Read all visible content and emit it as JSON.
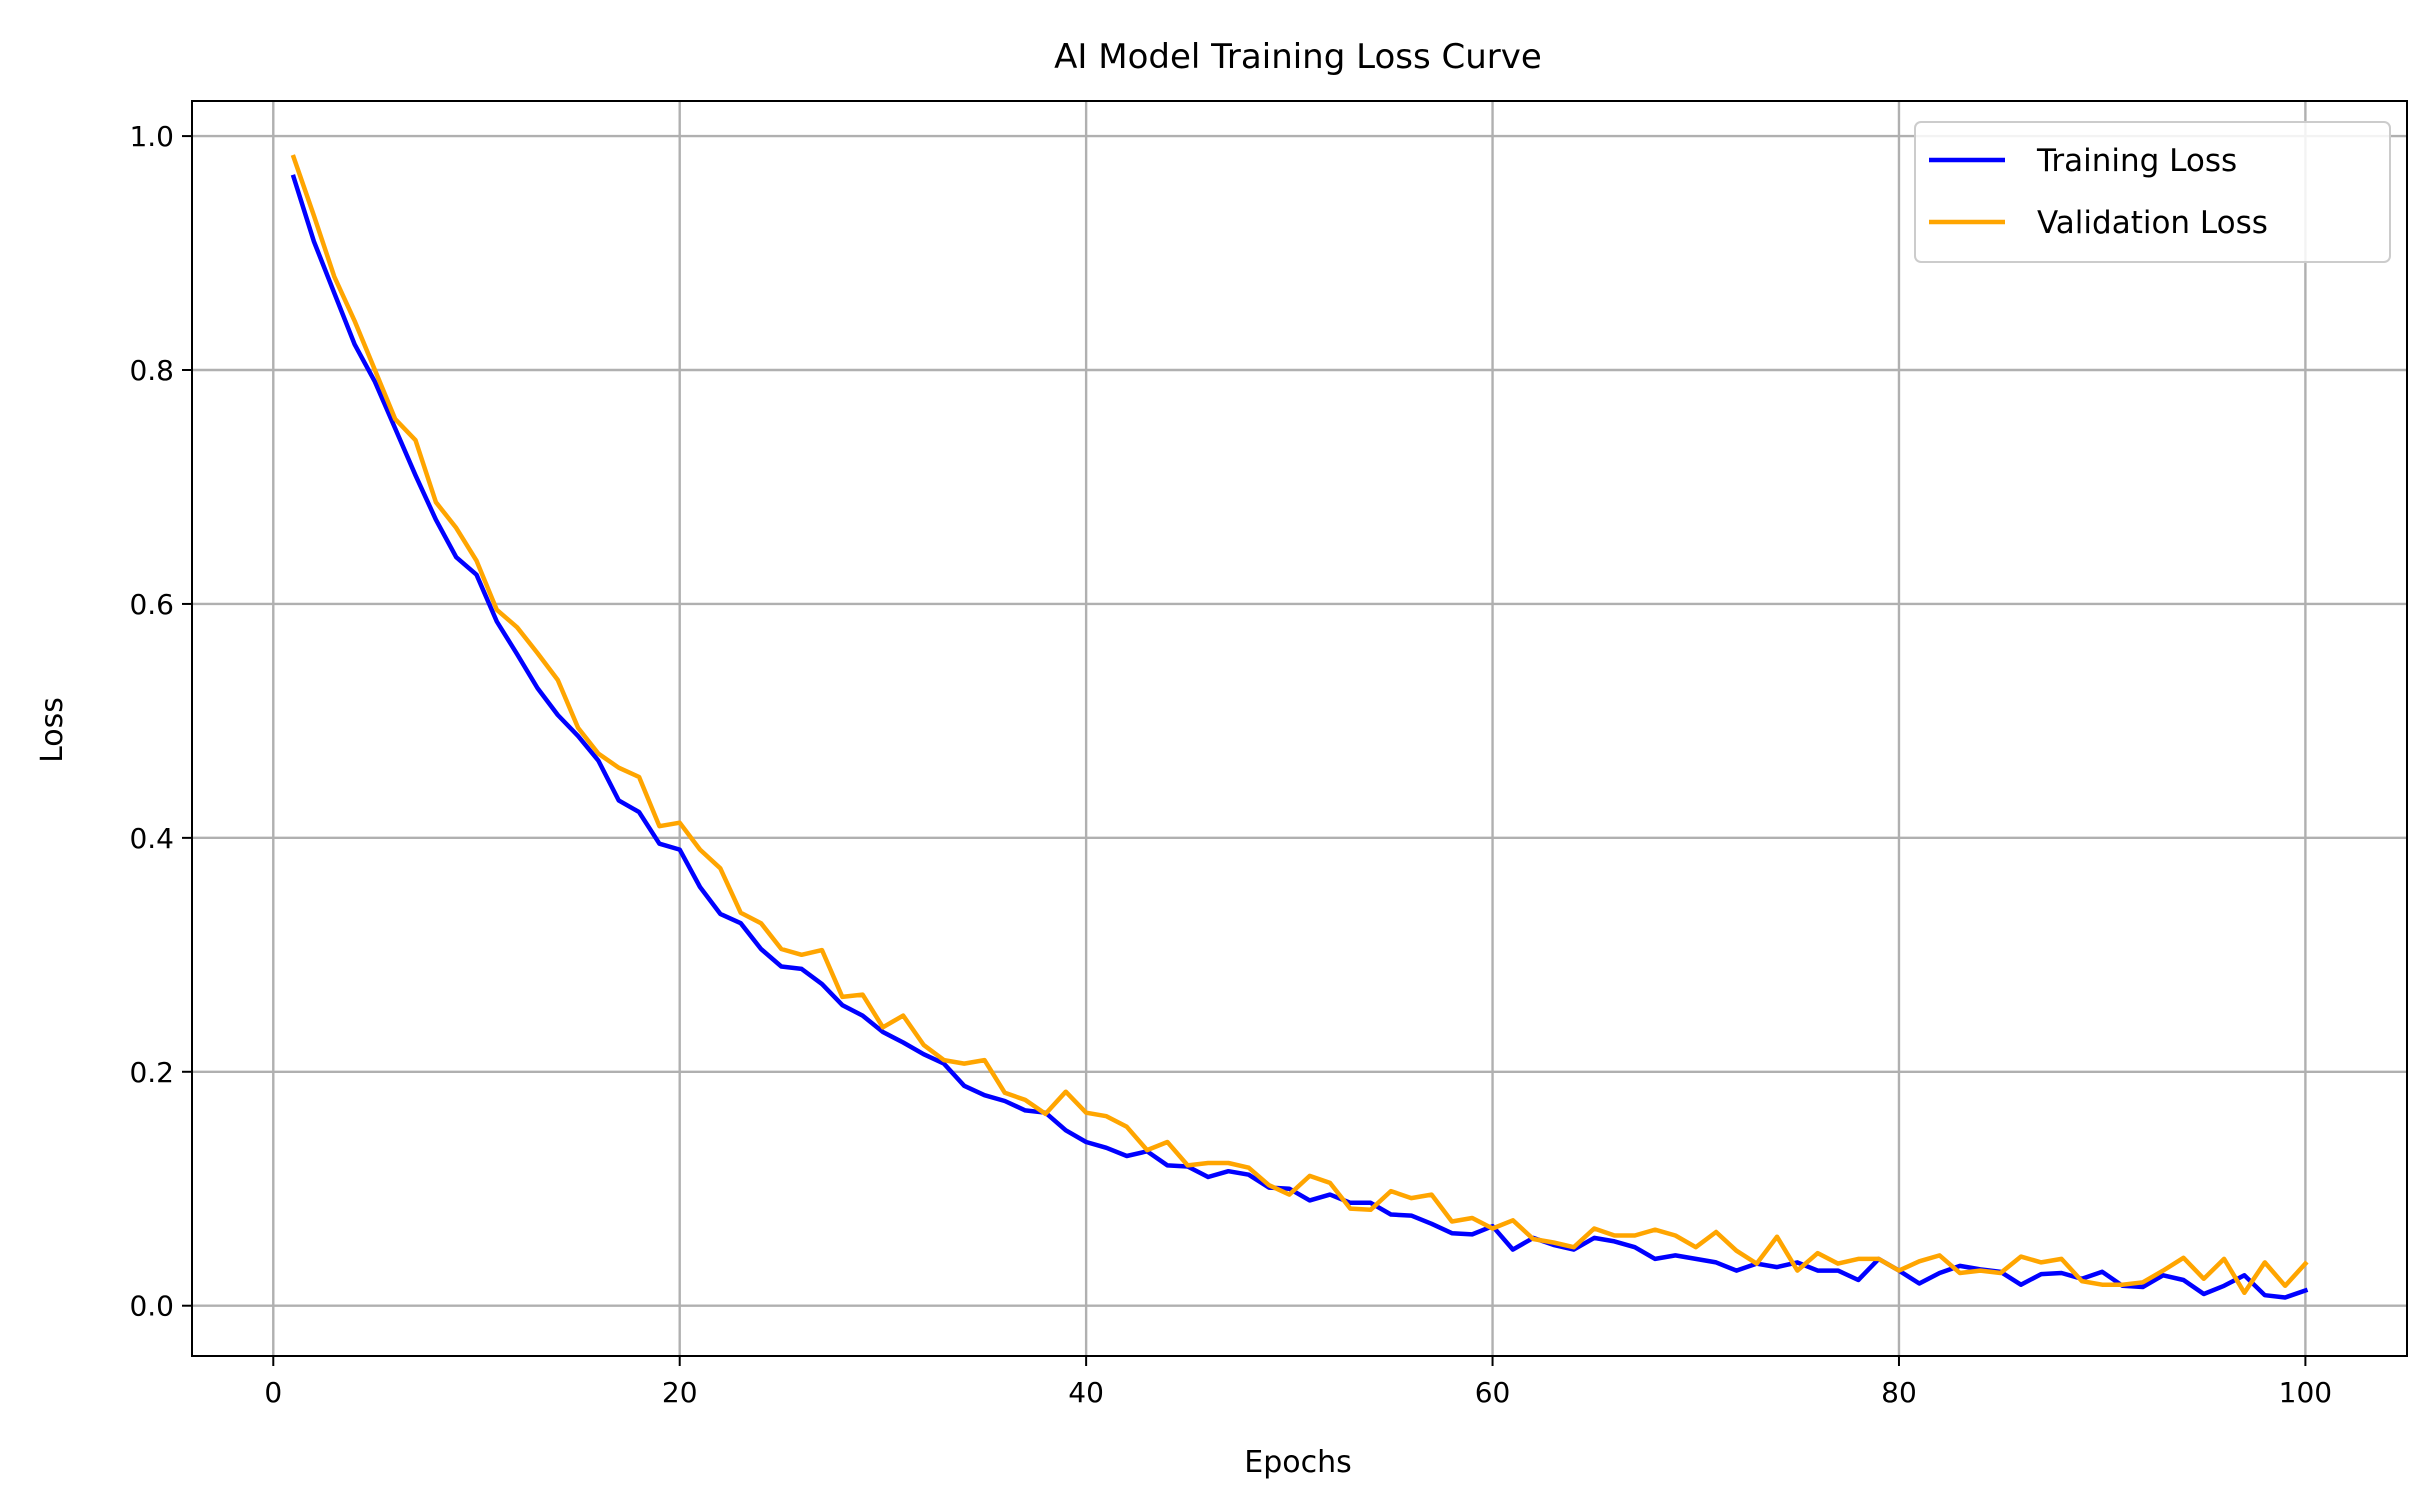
{
  "chart_data": {
    "type": "line",
    "title": "AI Model Training Loss Curve",
    "xlabel": "Epochs",
    "ylabel": "Loss",
    "xlim": [
      -4,
      105
    ],
    "ylim": [
      -0.043,
      1.03
    ],
    "x_ticks": [
      0,
      20,
      40,
      60,
      80,
      100
    ],
    "x_tick_labels": [
      "0",
      "20",
      "40",
      "60",
      "80",
      "100"
    ],
    "y_ticks": [
      0.0,
      0.2,
      0.4,
      0.6,
      0.8,
      1.0
    ],
    "y_tick_labels": [
      "0.0",
      "0.2",
      "0.4",
      "0.6",
      "0.8",
      "1.0"
    ],
    "grid": true,
    "legend_position": "top-right",
    "x": [
      1,
      2,
      3,
      4,
      5,
      6,
      7,
      8,
      9,
      10,
      11,
      12,
      13,
      14,
      15,
      16,
      17,
      18,
      19,
      20,
      21,
      22,
      23,
      24,
      25,
      26,
      27,
      28,
      29,
      30,
      31,
      32,
      33,
      34,
      35,
      36,
      37,
      38,
      39,
      40,
      41,
      42,
      43,
      44,
      45,
      46,
      47,
      48,
      49,
      50,
      51,
      52,
      53,
      54,
      55,
      56,
      57,
      58,
      59,
      60,
      61,
      62,
      63,
      64,
      65,
      66,
      67,
      68,
      69,
      70,
      71,
      72,
      73,
      74,
      75,
      76,
      77,
      78,
      79,
      80,
      81,
      82,
      83,
      84,
      85,
      86,
      87,
      88,
      89,
      90,
      91,
      92,
      93,
      94,
      95,
      96,
      97,
      98,
      99,
      100
    ],
    "series": [
      {
        "name": "Training Loss",
        "color": "#0000ff",
        "values": [
          0.965,
          0.91,
          0.866,
          0.822,
          0.79,
          0.75,
          0.71,
          0.672,
          0.64,
          0.625,
          0.585,
          0.557,
          0.528,
          0.505,
          0.487,
          0.466,
          0.432,
          0.422,
          0.395,
          0.39,
          0.358,
          0.335,
          0.327,
          0.305,
          0.29,
          0.288,
          0.275,
          0.257,
          0.248,
          0.234,
          0.225,
          0.215,
          0.207,
          0.188,
          0.18,
          0.175,
          0.167,
          0.165,
          0.15,
          0.14,
          0.135,
          0.128,
          0.132,
          0.12,
          0.119,
          0.11,
          0.115,
          0.112,
          0.101,
          0.1,
          0.09,
          0.095,
          0.088,
          0.088,
          0.078,
          0.077,
          0.07,
          0.062,
          0.061,
          0.068,
          0.048,
          0.058,
          0.052,
          0.048,
          0.058,
          0.055,
          0.05,
          0.04,
          0.043,
          0.04,
          0.037,
          0.03,
          0.036,
          0.033,
          0.037,
          0.03,
          0.03,
          0.022,
          0.04,
          0.03,
          0.019,
          0.028,
          0.034,
          0.031,
          0.029,
          0.018,
          0.027,
          0.028,
          0.023,
          0.029,
          0.017,
          0.016,
          0.026,
          0.022,
          0.01,
          0.017,
          0.026,
          0.009,
          0.007,
          0.013
        ]
      },
      {
        "name": "Validation Loss",
        "color": "#ffa500",
        "values": [
          0.982,
          0.932,
          0.88,
          0.842,
          0.8,
          0.758,
          0.74,
          0.687,
          0.665,
          0.637,
          0.595,
          0.58,
          0.558,
          0.535,
          0.494,
          0.472,
          0.46,
          0.452,
          0.41,
          0.413,
          0.39,
          0.374,
          0.336,
          0.327,
          0.305,
          0.3,
          0.304,
          0.264,
          0.266,
          0.238,
          0.248,
          0.223,
          0.21,
          0.207,
          0.21,
          0.182,
          0.176,
          0.164,
          0.183,
          0.165,
          0.162,
          0.153,
          0.133,
          0.14,
          0.12,
          0.122,
          0.122,
          0.118,
          0.103,
          0.095,
          0.111,
          0.105,
          0.083,
          0.082,
          0.098,
          0.092,
          0.095,
          0.072,
          0.075,
          0.066,
          0.073,
          0.057,
          0.054,
          0.05,
          0.066,
          0.06,
          0.06,
          0.065,
          0.06,
          0.05,
          0.063,
          0.047,
          0.036,
          0.059,
          0.03,
          0.045,
          0.036,
          0.04,
          0.04,
          0.03,
          0.038,
          0.043,
          0.028,
          0.03,
          0.028,
          0.042,
          0.037,
          0.04,
          0.021,
          0.018,
          0.018,
          0.02,
          0.03,
          0.041,
          0.023,
          0.04,
          0.011,
          0.037,
          0.017,
          0.036
        ]
      }
    ]
  }
}
